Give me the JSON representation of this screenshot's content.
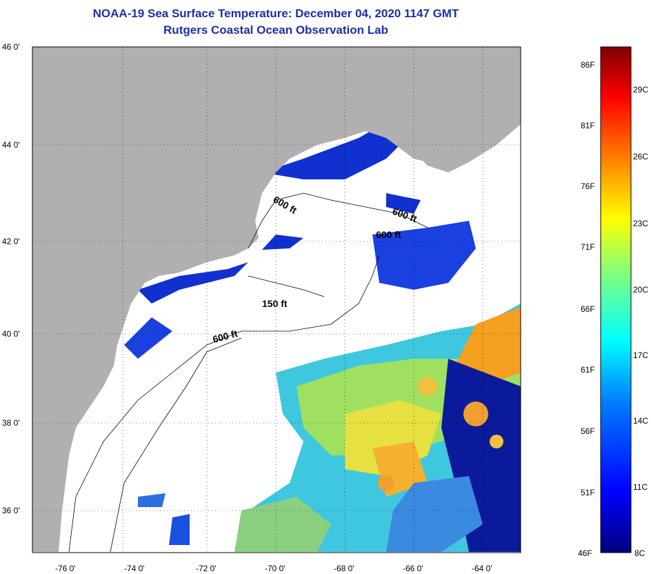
{
  "title": {
    "line1": "NOAA-19 Sea Surface Temperature:  December 04, 2020 1147 GMT",
    "line2": "Rutgers Coastal Ocean Observation Lab"
  },
  "map": {
    "lat_labels": [
      "46 0'",
      "44 0'",
      "42 0'",
      "40 0'",
      "38 0'",
      "36 0'"
    ],
    "lon_labels": [
      "-76 0'",
      "-74 0'",
      "-72 0'",
      "-70 0'",
      "-68 0'",
      "-66 0'",
      "-64 0'"
    ],
    "contour_labels": [
      "600 ft",
      "600 ft",
      "600 ft",
      "150 ft",
      "600 ft"
    ],
    "colors": {
      "land": "#b0b0b0",
      "cloud": "#ffffff",
      "frame": "#000000"
    }
  },
  "colorbar": {
    "fahrenheit": [
      "86F",
      "81F",
      "76F",
      "71F",
      "66F",
      "61F",
      "56F",
      "51F",
      "46F"
    ],
    "celsius": [
      "29C",
      "26C",
      "23C",
      "20C",
      "17C",
      "14C",
      "11C",
      "8C"
    ],
    "stops": [
      "#00007f",
      "#0000ff",
      "#007fff",
      "#00ffff",
      "#7fff7f",
      "#ffff00",
      "#ff7f00",
      "#ff0000",
      "#7f0000"
    ]
  }
}
